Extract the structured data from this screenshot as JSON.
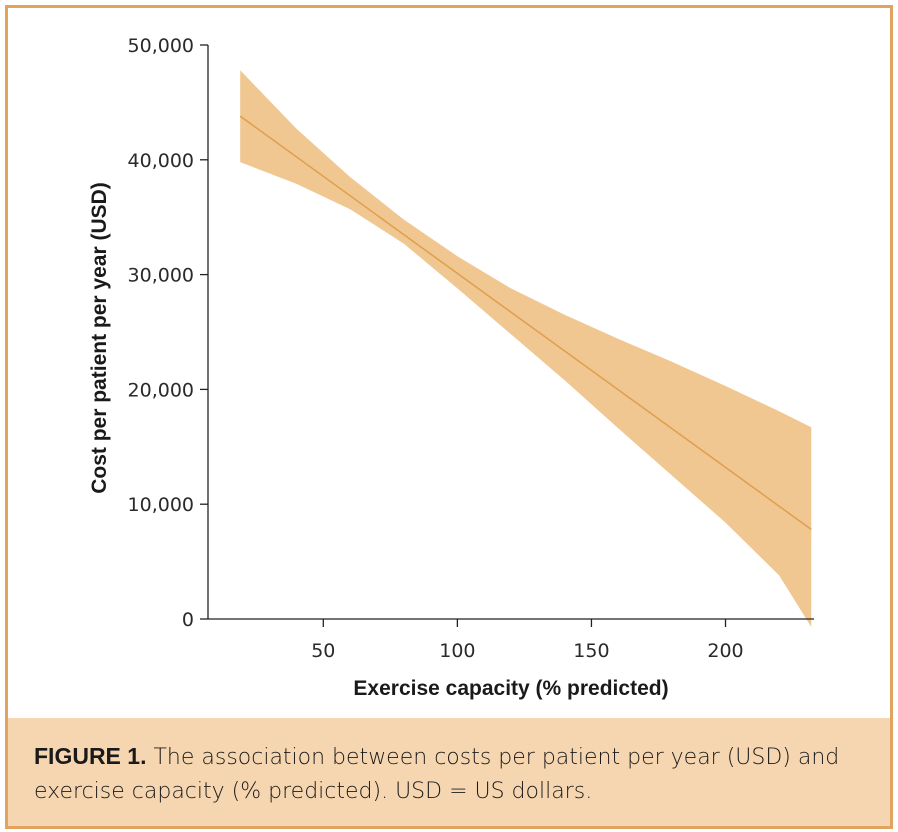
{
  "colors": {
    "border": "#e2a45c",
    "band": "#f1c791",
    "line": "#e0a050",
    "caption_bg": "#f6d6b0",
    "axis": "#222222"
  },
  "chart_data": {
    "type": "line",
    "title": "",
    "xlabel": "Exercise capacity (% predicted)",
    "ylabel": "Cost per patient per year (USD)",
    "xlim": [
      7,
      233
    ],
    "ylim": [
      0,
      50000
    ],
    "xticks": [
      50,
      100,
      150,
      200
    ],
    "xtick_labels": [
      "50",
      "100",
      "150",
      "200"
    ],
    "yticks": [
      0,
      10000,
      20000,
      30000,
      40000,
      50000
    ],
    "ytick_labels": [
      "0",
      "10,000",
      "20,000",
      "30,000",
      "40,000",
      "50,000"
    ],
    "series": [
      {
        "name": "Estimated cost",
        "x": [
          19,
          232
        ],
        "y": [
          43800,
          7800
        ],
        "ci_x": [
          19,
          40,
          60,
          80,
          100,
          120,
          140,
          160,
          180,
          200,
          220,
          232
        ],
        "ci_upper": [
          47800,
          42700,
          38500,
          34800,
          31600,
          28800,
          26500,
          24400,
          22400,
          20300,
          18100,
          16700
        ],
        "ci_lower": [
          39800,
          37900,
          35700,
          32700,
          28800,
          24800,
          20800,
          16600,
          12500,
          8400,
          3800,
          -700
        ]
      }
    ],
    "grid": false,
    "legend": "none"
  },
  "caption": {
    "label": "FIGURE 1.",
    "text": " The association between costs per patient per year (USD) and exercise capacity (% predicted). USD = US dollars."
  }
}
